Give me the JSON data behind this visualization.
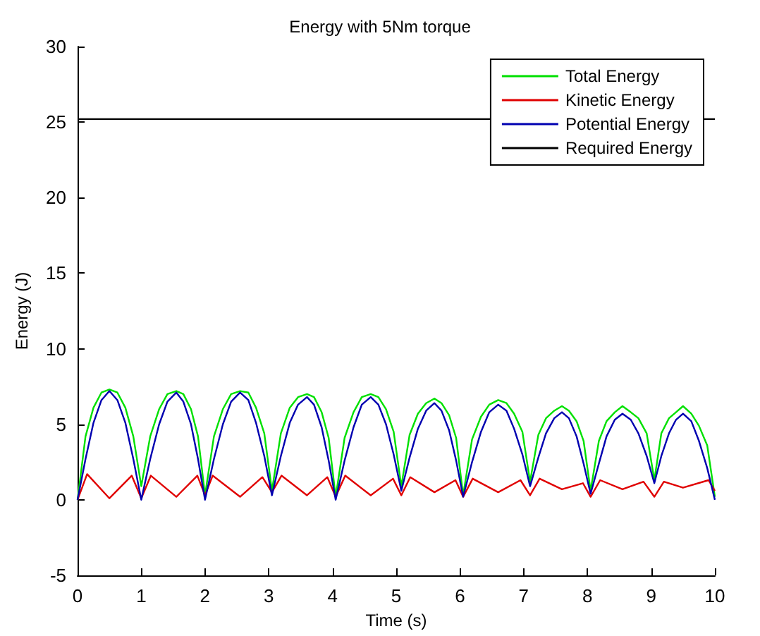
{
  "chart_data": {
    "type": "line",
    "title": "Energy with 5Nm torque",
    "xlabel": "Time (s)",
    "ylabel": "Energy (J)",
    "xlim": [
      0,
      10
    ],
    "xticks": [
      0,
      1,
      2,
      3,
      4,
      5,
      6,
      7,
      8,
      9,
      10
    ],
    "ylim": [
      -5,
      30
    ],
    "yticks": [
      -5,
      0,
      5,
      10,
      15,
      20,
      25,
      30
    ],
    "grid": false,
    "legend": "top right",
    "marker": "none",
    "line_style": "solid",
    "x": [
      0,
      0.125,
      0.25,
      0.375,
      0.5,
      0.625,
      0.75,
      0.875,
      1.0,
      1.14,
      1.28,
      1.41,
      1.55,
      1.66,
      1.78,
      1.89,
      2.0,
      2.14,
      2.28,
      2.41,
      2.55,
      2.68,
      2.8,
      2.93,
      3.05,
      3.19,
      3.33,
      3.46,
      3.6,
      3.71,
      3.83,
      3.94,
      4.05,
      4.19,
      4.33,
      4.46,
      4.6,
      4.72,
      4.84,
      4.96,
      5.08,
      5.21,
      5.34,
      5.47,
      5.6,
      5.71,
      5.83,
      5.94,
      6.05,
      6.19,
      6.33,
      6.46,
      6.6,
      6.73,
      6.85,
      6.98,
      7.1,
      7.23,
      7.35,
      7.48,
      7.6,
      7.71,
      7.83,
      7.94,
      8.05,
      8.18,
      8.3,
      8.43,
      8.55,
      8.68,
      8.8,
      8.93,
      9.05,
      9.16,
      9.28,
      9.39,
      9.5,
      9.63,
      9.75,
      9.88,
      10
    ],
    "series": [
      {
        "name": "Total Energy",
        "color": "#00e000",
        "values": [
          0,
          4.2,
          6.1,
          7.1,
          7.3,
          7.1,
          6.1,
          4.2,
          0.9,
          4.2,
          6.0,
          7.0,
          7.2,
          7.0,
          6.0,
          4.2,
          0.3,
          4.2,
          6.0,
          7.0,
          7.2,
          7.1,
          6.1,
          4.4,
          0.6,
          4.4,
          6.1,
          6.8,
          7.0,
          6.8,
          5.8,
          4.1,
          0.2,
          4.1,
          5.8,
          6.8,
          7.0,
          6.8,
          6.0,
          4.5,
          0.9,
          4.3,
          5.7,
          6.4,
          6.7,
          6.4,
          5.6,
          4.1,
          0.3,
          4.0,
          5.5,
          6.3,
          6.6,
          6.4,
          5.7,
          4.5,
          1.2,
          4.3,
          5.4,
          5.9,
          6.2,
          5.9,
          5.2,
          3.9,
          0.6,
          3.9,
          5.2,
          5.8,
          6.2,
          5.8,
          5.4,
          4.4,
          1.3,
          4.4,
          5.4,
          5.8,
          6.2,
          5.7,
          4.9,
          3.6,
          0.2
        ]
      },
      {
        "name": "Kinetic Energy",
        "color": "#e00000",
        "x": [
          0,
          0.15,
          0.5,
          0.85,
          1.0,
          1.15,
          1.55,
          1.88,
          2.0,
          2.12,
          2.55,
          2.9,
          3.05,
          3.2,
          3.6,
          3.92,
          4.05,
          4.2,
          4.6,
          4.95,
          5.08,
          5.22,
          5.6,
          5.93,
          6.05,
          6.2,
          6.6,
          6.95,
          7.1,
          7.25,
          7.6,
          7.93,
          8.05,
          8.2,
          8.55,
          8.88,
          9.05,
          9.2,
          9.5,
          9.9,
          10
        ],
        "values": [
          0,
          1.7,
          0.1,
          1.6,
          0.1,
          1.6,
          0.2,
          1.6,
          0.3,
          1.6,
          0.2,
          1.5,
          0.5,
          1.6,
          0.3,
          1.5,
          0.2,
          1.6,
          0.3,
          1.4,
          0.3,
          1.5,
          0.5,
          1.3,
          0.2,
          1.4,
          0.5,
          1.3,
          0.3,
          1.4,
          0.7,
          1.1,
          0.2,
          1.3,
          0.7,
          1.2,
          0.2,
          1.2,
          0.8,
          1.3,
          0.6
        ]
      },
      {
        "name": "Potential Energy",
        "color": "#0000b0",
        "values": [
          0,
          2.7,
          5.1,
          6.6,
          7.2,
          6.6,
          5.1,
          2.7,
          0,
          2.7,
          5.0,
          6.5,
          7.1,
          6.5,
          5.0,
          2.7,
          0,
          2.7,
          5.0,
          6.5,
          7.1,
          6.6,
          5.1,
          2.9,
          0.3,
          2.9,
          5.1,
          6.3,
          6.8,
          6.3,
          4.8,
          2.6,
          0,
          2.6,
          4.8,
          6.3,
          6.8,
          6.3,
          5.0,
          3.0,
          0.6,
          2.8,
          4.7,
          5.9,
          6.4,
          5.9,
          4.6,
          2.6,
          0.2,
          2.5,
          4.5,
          5.8,
          6.3,
          5.9,
          4.7,
          3.0,
          0.9,
          2.8,
          4.4,
          5.4,
          5.8,
          5.4,
          4.2,
          2.4,
          0.4,
          2.4,
          4.2,
          5.3,
          5.7,
          5.3,
          4.4,
          2.9,
          1.1,
          2.9,
          4.4,
          5.3,
          5.7,
          5.2,
          3.9,
          2.1,
          0
        ]
      },
      {
        "name": "Required Energy",
        "color": "#000000",
        "x": [
          0,
          10
        ],
        "values": [
          25.2,
          25.2
        ]
      }
    ]
  }
}
